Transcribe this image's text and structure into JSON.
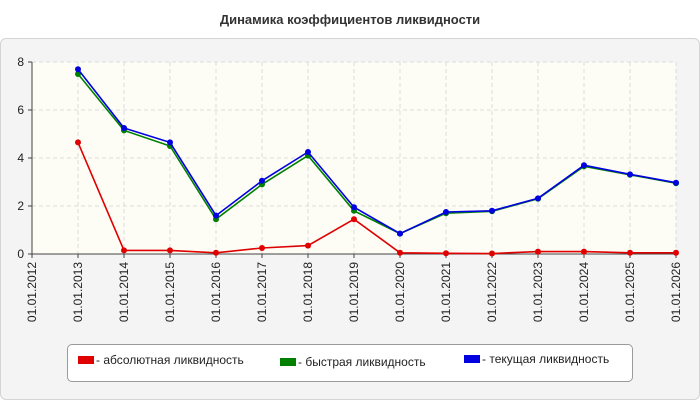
{
  "chart_data": {
    "type": "line",
    "title": "Динамика коэффициентов ликвидности",
    "categories": [
      "01.01.2012",
      "01.01.2013",
      "01.01.2014",
      "01.01.2015",
      "01.01.2016",
      "01.01.2017",
      "01.01.2018",
      "01.01.2019",
      "01.01.2020",
      "01.01.2021",
      "01.01.2022",
      "01.01.2023",
      "01.01.2024",
      "01.01.2025",
      "01.01.2026"
    ],
    "ylim": [
      0,
      8
    ],
    "yticks": [
      0,
      2,
      4,
      6,
      8
    ],
    "grid": true,
    "legend_position": "bottom",
    "series": [
      {
        "name": "- абсолютная ликвидность",
        "color": "#e00000",
        "values": [
          null,
          4.65,
          0.15,
          0.15,
          0.05,
          0.25,
          0.35,
          1.45,
          0.05,
          0.03,
          0.02,
          0.1,
          0.1,
          0.05,
          0.05
        ]
      },
      {
        "name": "- быстрая ликвидность",
        "color": "#008000",
        "values": [
          null,
          7.5,
          5.15,
          4.5,
          1.45,
          2.9,
          4.1,
          1.8,
          0.85,
          1.7,
          1.78,
          2.3,
          3.65,
          3.3,
          2.95
        ]
      },
      {
        "name": "- текущая ликвидность",
        "color": "#0000e0",
        "values": [
          null,
          7.7,
          5.25,
          4.65,
          1.6,
          3.05,
          4.25,
          1.95,
          0.85,
          1.75,
          1.8,
          2.32,
          3.7,
          3.32,
          2.97
        ]
      }
    ]
  }
}
